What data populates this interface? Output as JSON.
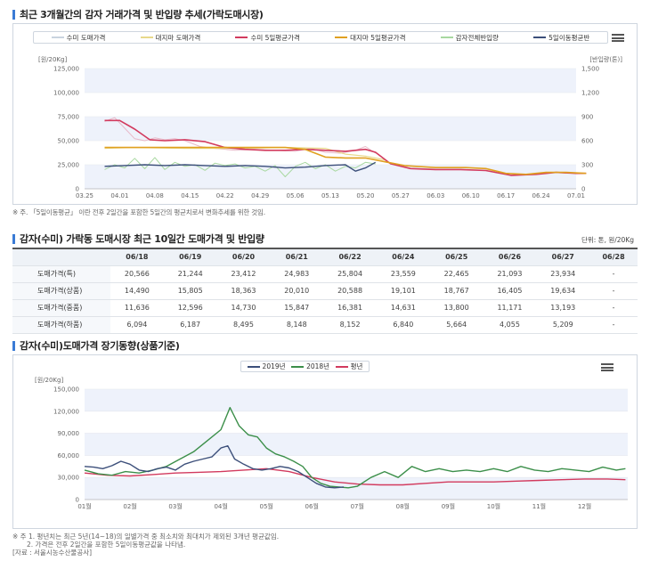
{
  "section1": {
    "title": "최근 3개월간의 감자 거래가격 및 반입량 추세(가락도매시장)",
    "legend": [
      {
        "name": "수미 도매가격",
        "color": "#c9d3df"
      },
      {
        "name": "대지마 도매가격",
        "color": "#e8d98a"
      },
      {
        "name": "수미 5일평균가격",
        "color": "#d23a5e"
      },
      {
        "name": "대지마 5일평균가격",
        "color": "#e0a020"
      },
      {
        "name": "감자전체반입량",
        "color": "#a8d8a0"
      },
      {
        "name": "5일이동평균반",
        "color": "#3c4f7a"
      }
    ],
    "note": "※ 주. 「5일이동평균」 이란 전후 2일간을 포함한 5일간의 평균치로서 변화추세를 위한 것임."
  },
  "section2": {
    "title": "감자(수미) 가락동 도매시장 최근 10일간 도매가격 및 반입량",
    "unit": "단위: 톤, 원/20Kg",
    "columns": [
      "",
      "06/18",
      "06/19",
      "06/20",
      "06/21",
      "06/22",
      "06/24",
      "06/25",
      "06/26",
      "06/27",
      "06/28"
    ],
    "rows": [
      {
        "label": "도매가격(특)",
        "values": [
          "20,566",
          "21,244",
          "23,412",
          "24,983",
          "25,804",
          "23,559",
          "22,465",
          "21,093",
          "23,934",
          "-"
        ]
      },
      {
        "label": "도매가격(상품)",
        "values": [
          "14,490",
          "15,805",
          "18,363",
          "20,010",
          "20,588",
          "19,101",
          "18,767",
          "16,405",
          "19,634",
          "-"
        ]
      },
      {
        "label": "도매가격(중품)",
        "values": [
          "11,636",
          "12,596",
          "14,730",
          "15,847",
          "16,381",
          "14,631",
          "13,800",
          "11,171",
          "13,193",
          "-"
        ]
      },
      {
        "label": "도매가격(하품)",
        "values": [
          "6,094",
          "6,187",
          "8,495",
          "8,148",
          "8,152",
          "6,840",
          "5,664",
          "4,055",
          "5,209",
          "-"
        ]
      }
    ]
  },
  "section3": {
    "title": "감자(수미)도매가격 장기동향(상품기준)",
    "legend": [
      {
        "name": "2019년",
        "color": "#3c4f7a"
      },
      {
        "name": "2018년",
        "color": "#3c8f4a"
      },
      {
        "name": "평년",
        "color": "#d23a5e"
      }
    ],
    "footnote1": "※ 주 1. 평년치는 최근 5년(14~18)의 일별가격 중 최소치와 최대치가 제외된 3개년 평균값임.",
    "footnote2": "2. 가격은 전후 2일간을 포함한 5일이동평균값을 나타냄.",
    "source": "[자료 : 서울시농수산물공사]"
  },
  "chart_data": [
    {
      "type": "line",
      "title": "최근 3개월간의 감자 거래가격 및 반입량 추세(가락도매시장)",
      "ylabel": "[원/20Kg]",
      "y2label": "[반입량(톤)]",
      "ylim": [
        0,
        125000
      ],
      "y2lim": [
        0,
        1500
      ],
      "yticks": [
        "0",
        "25,000",
        "50,000",
        "75,000",
        "100,000",
        "125,000"
      ],
      "y2ticks": [
        "0",
        "300",
        "600",
        "900",
        "1,200",
        "1,500"
      ],
      "xticks": [
        "03.25",
        "04.01",
        "04.08",
        "04.15",
        "04.22",
        "04.29",
        "05.06",
        "05.13",
        "05.20",
        "05.27",
        "06.03",
        "06.10",
        "06.17",
        "06.24",
        "07.01"
      ],
      "grid": true,
      "legend_position": "top",
      "series": [
        {
          "name": "수미 도매가격",
          "axis": "left",
          "color": "#e8b8c8",
          "x": [
            4,
            6,
            8,
            10,
            12,
            14,
            16,
            18,
            20,
            23,
            26,
            30,
            34,
            38,
            42,
            45,
            48,
            51,
            54,
            56,
            58
          ],
          "y": [
            70000,
            74000,
            63000,
            52000,
            50000,
            53000,
            51000,
            52000,
            50000,
            44000,
            42000,
            40000,
            41000,
            40000,
            39000,
            42000,
            38000,
            37000,
            40000,
            44000,
            37000
          ]
        },
        {
          "name": "대지마 도매가격",
          "axis": "left",
          "color": "#e8d98a",
          "x": [
            4,
            10,
            20,
            30,
            40,
            48,
            52,
            56,
            60
          ],
          "y": [
            42000,
            43000,
            42000,
            42000,
            43000,
            42000,
            36000,
            34000,
            30000
          ]
        },
        {
          "name": "수미 5일평균가격",
          "axis": "left",
          "color": "#d23a5e",
          "x": [
            4,
            7,
            10,
            13,
            16,
            20,
            24,
            28,
            32,
            36,
            40,
            44,
            48,
            52,
            56,
            58,
            61,
            65,
            70,
            75,
            80,
            85,
            90,
            94,
            98,
            100
          ],
          "y": [
            71000,
            71000,
            62000,
            51000,
            50000,
            51000,
            49000,
            43000,
            41000,
            40000,
            40000,
            41000,
            40000,
            39000,
            41000,
            38000,
            26000,
            21000,
            20000,
            20000,
            19000,
            14000,
            15000,
            17000,
            16000,
            16000
          ]
        },
        {
          "name": "대지마 5일평균가격",
          "axis": "left",
          "color": "#e0a020",
          "x": [
            4,
            10,
            20,
            30,
            40,
            44,
            48,
            52,
            56,
            60,
            64,
            70,
            76,
            80,
            84,
            88,
            92,
            96,
            100
          ],
          "y": [
            43000,
            43000,
            43000,
            43000,
            43000,
            41000,
            33000,
            32000,
            32000,
            28000,
            24000,
            22000,
            22000,
            21000,
            16000,
            15000,
            17000,
            17000,
            16000
          ]
        },
        {
          "name": "감자전체반입량",
          "axis": "right",
          "color": "#a8d8a0",
          "x": [
            4,
            6,
            8,
            10,
            12,
            14,
            16,
            18,
            20,
            22,
            24,
            26,
            28,
            30,
            32,
            34,
            36,
            38,
            40,
            42,
            44,
            46,
            48,
            50,
            52,
            54,
            56,
            58
          ],
          "y": [
            240,
            300,
            260,
            380,
            250,
            390,
            240,
            330,
            280,
            300,
            230,
            320,
            290,
            310,
            260,
            280,
            220,
            290,
            150,
            280,
            330,
            250,
            300,
            220,
            280,
            260,
            330,
            310
          ]
        },
        {
          "name": "5일이동평균반",
          "axis": "right",
          "color": "#3c4f7a",
          "x": [
            4,
            8,
            12,
            16,
            20,
            24,
            28,
            32,
            36,
            40,
            44,
            48,
            52,
            54,
            56,
            58
          ],
          "y": [
            280,
            290,
            300,
            290,
            300,
            290,
            280,
            290,
            280,
            260,
            270,
            290,
            300,
            220,
            260,
            330
          ]
        }
      ]
    },
    {
      "type": "table",
      "title": "감자(수미) 가락동 도매시장 최근 10일간 도매가격 및 반입량",
      "columns": [
        "06/18",
        "06/19",
        "06/20",
        "06/21",
        "06/22",
        "06/24",
        "06/25",
        "06/26",
        "06/27",
        "06/28"
      ],
      "rows": [
        "도매가격(특)",
        "도매가격(상품)",
        "도매가격(중품)",
        "도매가격(하품)"
      ]
    },
    {
      "type": "line",
      "title": "감자(수미)도매가격 장기동향(상품기준)",
      "ylabel": "[원/20Kg]",
      "ylim": [
        0,
        150000
      ],
      "yticks": [
        "0",
        "30,000",
        "60,000",
        "90,000",
        "120,000",
        "150,000"
      ],
      "xticks": [
        "01월",
        "02월",
        "03월",
        "04월",
        "05월",
        "06월",
        "07월",
        "08월",
        "09월",
        "10월",
        "11월",
        "12월"
      ],
      "grid": true,
      "legend_position": "top",
      "series": [
        {
          "name": "2019년",
          "color": "#3c4f7a",
          "x": [
            1.0,
            1.2,
            1.4,
            1.6,
            1.8,
            2.0,
            2.2,
            2.4,
            2.6,
            2.8,
            3.0,
            3.2,
            3.4,
            3.6,
            3.8,
            4.0,
            4.15,
            4.3,
            4.5,
            4.7,
            4.9,
            5.1,
            5.3,
            5.5,
            5.7,
            5.9,
            6.1,
            6.3,
            6.5,
            6.7
          ],
          "y": [
            45000,
            44000,
            42000,
            46000,
            52000,
            48000,
            40000,
            38000,
            42000,
            44000,
            40000,
            48000,
            52000,
            55000,
            58000,
            70000,
            73000,
            55000,
            48000,
            42000,
            40000,
            42000,
            45000,
            43000,
            38000,
            30000,
            22000,
            17000,
            16000,
            17000
          ]
        },
        {
          "name": "2018년",
          "color": "#3c8f4a",
          "x": [
            1.0,
            1.3,
            1.6,
            1.9,
            2.2,
            2.5,
            2.8,
            3.1,
            3.4,
            3.7,
            4.0,
            4.2,
            4.4,
            4.6,
            4.8,
            5.0,
            5.2,
            5.4,
            5.6,
            5.8,
            6.0,
            6.2,
            6.4,
            6.6,
            6.8,
            7.0,
            7.3,
            7.6,
            7.9,
            8.2,
            8.5,
            8.8,
            9.1,
            9.4,
            9.7,
            10.0,
            10.3,
            10.6,
            10.9,
            11.2,
            11.5,
            11.8,
            12.1,
            12.4,
            12.7,
            12.9
          ],
          "y": [
            40000,
            35000,
            33000,
            38000,
            36000,
            40000,
            45000,
            55000,
            65000,
            80000,
            95000,
            125000,
            100000,
            88000,
            85000,
            70000,
            62000,
            58000,
            52000,
            45000,
            30000,
            22000,
            18000,
            17000,
            16000,
            18000,
            30000,
            38000,
            30000,
            45000,
            38000,
            42000,
            38000,
            40000,
            38000,
            42000,
            38000,
            45000,
            40000,
            38000,
            42000,
            40000,
            38000,
            44000,
            40000,
            42000
          ]
        },
        {
          "name": "평년",
          "color": "#d23a5e",
          "x": [
            1.0,
            1.5,
            2.0,
            2.5,
            3.0,
            3.5,
            4.0,
            4.5,
            5.0,
            5.5,
            6.0,
            6.5,
            7.0,
            7.5,
            8.0,
            8.5,
            9.0,
            9.5,
            10.0,
            10.5,
            11.0,
            11.5,
            12.0,
            12.5,
            12.9
          ],
          "y": [
            36000,
            33000,
            32000,
            34000,
            36000,
            37000,
            38000,
            40000,
            42000,
            38000,
            30000,
            24000,
            21000,
            20000,
            20000,
            22000,
            24000,
            24000,
            24000,
            25000,
            26000,
            27000,
            28000,
            28000,
            27000
          ]
        }
      ]
    }
  ]
}
